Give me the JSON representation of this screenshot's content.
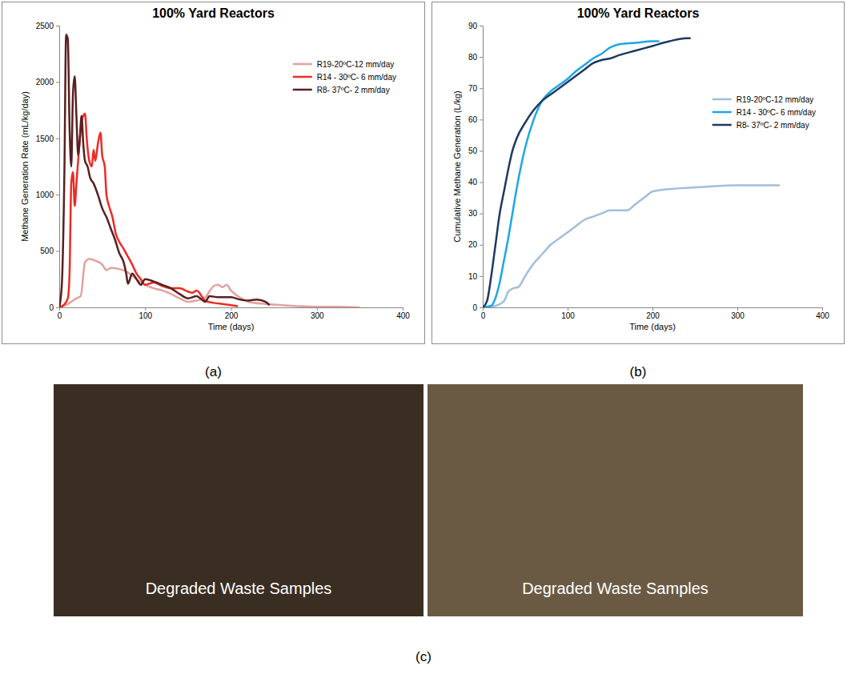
{
  "chart_data": [
    {
      "type": "line",
      "title": "100% Yard Reactors",
      "panel_label": "(a)",
      "x_label": "Time (days)",
      "y_label": "Methane Generation Rate (mL/kg/day)",
      "xlim": [
        0,
        400
      ],
      "xticks": [
        0,
        100,
        200,
        300,
        400
      ],
      "ylim": [
        0,
        2500
      ],
      "yticks": [
        0,
        500,
        1000,
        1500,
        2000,
        2500
      ],
      "grid": false,
      "legend": "upper right",
      "series": [
        {
          "name": "R19-20ºC-12 mm/day",
          "color": "#e3a19e",
          "x": [
            0,
            10,
            20,
            25,
            30,
            35,
            40,
            50,
            55,
            60,
            70,
            80,
            90,
            100,
            110,
            120,
            130,
            140,
            150,
            160,
            170,
            180,
            185,
            190,
            195,
            200,
            210,
            220,
            240,
            260,
            280,
            300,
            320,
            350
          ],
          "values": [
            0,
            30,
            80,
            100,
            400,
            430,
            420,
            380,
            330,
            350,
            340,
            310,
            250,
            200,
            170,
            150,
            120,
            80,
            50,
            60,
            90,
            190,
            200,
            180,
            200,
            150,
            90,
            50,
            30,
            20,
            10,
            5,
            5,
            0
          ]
        },
        {
          "name": "R14 - 30ºC- 6 mm/day",
          "color": "#ee2a24",
          "x": [
            0,
            5,
            10,
            12,
            14,
            16,
            18,
            20,
            23,
            26,
            28,
            30,
            32,
            35,
            38,
            40,
            42,
            45,
            48,
            50,
            53,
            55,
            58,
            62,
            66,
            70,
            75,
            80,
            85,
            90,
            95,
            100,
            110,
            120,
            130,
            140,
            150,
            155,
            160,
            170,
            180,
            190,
            200,
            208
          ],
          "values": [
            0,
            20,
            80,
            300,
            1100,
            1200,
            900,
            1100,
            1400,
            1650,
            1700,
            1720,
            1500,
            1300,
            1250,
            1400,
            1300,
            1450,
            1550,
            1350,
            1250,
            1000,
            900,
            800,
            650,
            580,
            520,
            450,
            380,
            300,
            250,
            200,
            220,
            190,
            170,
            170,
            140,
            130,
            150,
            60,
            40,
            30,
            20,
            10
          ]
        },
        {
          "name": "R8- 37ºC- 2 mm/day",
          "color": "#5a1f1f",
          "x": [
            0,
            3,
            6,
            8,
            10,
            12,
            14,
            16,
            18,
            20,
            22,
            24,
            26,
            28,
            30,
            33,
            36,
            40,
            45,
            50,
            55,
            60,
            65,
            70,
            75,
            78,
            80,
            85,
            90,
            95,
            100,
            110,
            120,
            130,
            140,
            150,
            160,
            170,
            175,
            185,
            200,
            210,
            220,
            230,
            240,
            245
          ],
          "values": [
            0,
            200,
            1200,
            2420,
            2380,
            1600,
            1250,
            1900,
            2050,
            1700,
            1350,
            1500,
            1700,
            1450,
            1300,
            1250,
            1150,
            1100,
            1000,
            880,
            800,
            700,
            600,
            480,
            400,
            300,
            210,
            300,
            250,
            200,
            250,
            230,
            200,
            170,
            120,
            80,
            100,
            50,
            100,
            90,
            90,
            70,
            60,
            70,
            50,
            20
          ]
        }
      ]
    },
    {
      "type": "line",
      "title": "100% Yard Reactors",
      "panel_label": "(b)",
      "x_label": "Time (days)",
      "y_label": "Cumulative Methane Generation  (L/kg)",
      "xlim": [
        0,
        400
      ],
      "xticks": [
        0,
        100,
        200,
        300,
        400
      ],
      "ylim": [
        0,
        90
      ],
      "yticks": [
        0,
        10,
        20,
        30,
        40,
        50,
        60,
        70,
        80,
        90
      ],
      "grid": false,
      "legend": "upper right",
      "series": [
        {
          "name": "R19-20ºC-12 mm/day",
          "color": "#a3bedc",
          "x": [
            0,
            15,
            25,
            30,
            35,
            42,
            50,
            60,
            70,
            80,
            90,
            100,
            110,
            120,
            130,
            140,
            150,
            160,
            170,
            180,
            190,
            200,
            210,
            230,
            260,
            300,
            350
          ],
          "values": [
            0,
            0.5,
            2,
            5,
            6,
            6.5,
            10,
            14,
            17,
            20,
            22,
            24,
            26,
            28,
            29,
            30,
            31,
            31,
            31,
            33,
            35,
            37,
            37.5,
            38,
            38.5,
            39,
            39
          ]
        },
        {
          "name": "R14 - 30ºC- 6 mm/day",
          "color": "#1ca6e8",
          "x": [
            0,
            10,
            15,
            20,
            25,
            30,
            35,
            40,
            45,
            50,
            60,
            70,
            80,
            90,
            100,
            110,
            120,
            130,
            140,
            150,
            160,
            180,
            200,
            208
          ],
          "values": [
            0,
            0.5,
            3,
            8,
            15,
            22,
            30,
            38,
            45,
            51,
            60,
            66,
            69,
            71,
            73,
            75.5,
            77.5,
            79.5,
            81,
            83,
            84,
            84.5,
            85,
            85
          ]
        },
        {
          "name": "R8- 37ºC- 2 mm/day",
          "color": "#1f3a5f",
          "x": [
            0,
            5,
            10,
            15,
            20,
            25,
            30,
            35,
            40,
            50,
            60,
            70,
            80,
            100,
            120,
            130,
            140,
            150,
            160,
            180,
            200,
            220,
            240,
            245
          ],
          "values": [
            0,
            2,
            10,
            20,
            30,
            37,
            44,
            50,
            54,
            59,
            63,
            66,
            68,
            72,
            76,
            78,
            79,
            79.5,
            80.5,
            82,
            83.5,
            85,
            86,
            86
          ]
        }
      ]
    }
  ],
  "photos": {
    "panel_label": "(c)",
    "captions": [
      "Degraded Waste Samples",
      "Degraded Waste Samples"
    ]
  }
}
